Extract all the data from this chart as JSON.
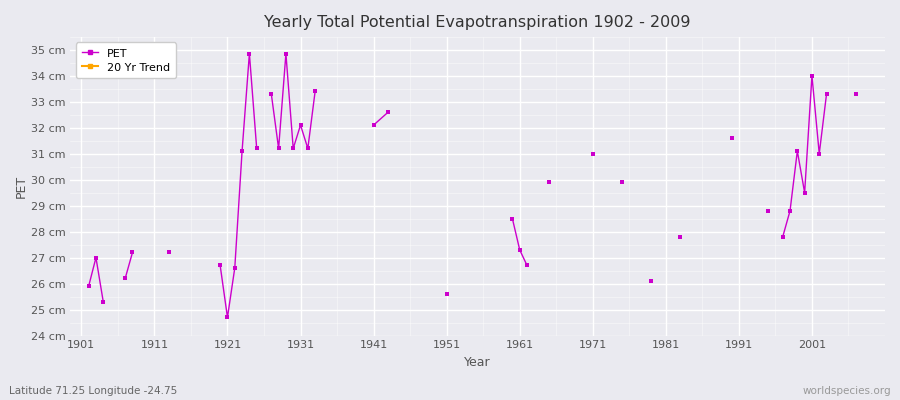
{
  "title": "Yearly Total Potential Evapotranspiration 1902 - 2009",
  "xlabel": "Year",
  "ylabel": "PET",
  "subtitle": "Latitude 71.25 Longitude -24.75",
  "watermark": "worldspecies.org",
  "ylim": [
    24,
    35.5
  ],
  "xlim": [
    1899.5,
    2011
  ],
  "yticks": [
    24,
    25,
    26,
    27,
    28,
    29,
    30,
    31,
    32,
    33,
    34,
    35
  ],
  "ytick_labels": [
    "24 cm",
    "25 cm",
    "26 cm",
    "27 cm",
    "28 cm",
    "29 cm",
    "30 cm",
    "31 cm",
    "32 cm",
    "33 cm",
    "34 cm",
    "35 cm"
  ],
  "xticks": [
    1901,
    1911,
    1921,
    1931,
    1941,
    1951,
    1961,
    1971,
    1981,
    1991,
    2001
  ],
  "pet_groups": [
    {
      "years": [
        1902,
        1903,
        1904
      ],
      "values": [
        25.9,
        27.0,
        25.3
      ]
    },
    {
      "years": [
        1907,
        1908
      ],
      "values": [
        26.2,
        27.2
      ]
    },
    {
      "years": [
        1913
      ],
      "values": [
        27.2
      ]
    },
    {
      "years": [
        1920,
        1921,
        1922,
        1923,
        1924,
        1925
      ],
      "values": [
        26.7,
        24.7,
        26.6,
        31.1,
        34.85,
        31.2
      ]
    },
    {
      "years": [
        1927,
        1928,
        1929,
        1930,
        1931,
        1932,
        1933
      ],
      "values": [
        33.3,
        31.2,
        34.85,
        31.2,
        32.1,
        31.2,
        33.4
      ]
    },
    {
      "years": [
        1941,
        1943
      ],
      "values": [
        32.1,
        32.6
      ]
    },
    {
      "years": [
        1951
      ],
      "values": [
        25.6
      ]
    },
    {
      "years": [
        1960,
        1961,
        1962
      ],
      "values": [
        28.5,
        27.3,
        26.7
      ]
    },
    {
      "years": [
        1965
      ],
      "values": [
        29.9
      ]
    },
    {
      "years": [
        1971
      ],
      "values": [
        31.0
      ]
    },
    {
      "years": [
        1975
      ],
      "values": [
        29.9
      ]
    },
    {
      "years": [
        1979
      ],
      "values": [
        26.1
      ]
    },
    {
      "years": [
        1983
      ],
      "values": [
        27.8
      ]
    },
    {
      "years": [
        1990
      ],
      "values": [
        31.6
      ]
    },
    {
      "years": [
        1995
      ],
      "values": [
        28.8
      ]
    },
    {
      "years": [
        1997,
        1998,
        1999,
        2000,
        2001,
        2002,
        2003
      ],
      "values": [
        27.8,
        28.8,
        31.1,
        29.5,
        34.0,
        31.0,
        33.3
      ]
    },
    {
      "years": [
        2007
      ],
      "values": [
        33.3
      ]
    }
  ],
  "pet_color": "#CC00CC",
  "trend_color": "#FFA500",
  "bg_color": "#EAEAF0",
  "legend_labels": [
    "PET",
    "20 Yr Trend"
  ]
}
